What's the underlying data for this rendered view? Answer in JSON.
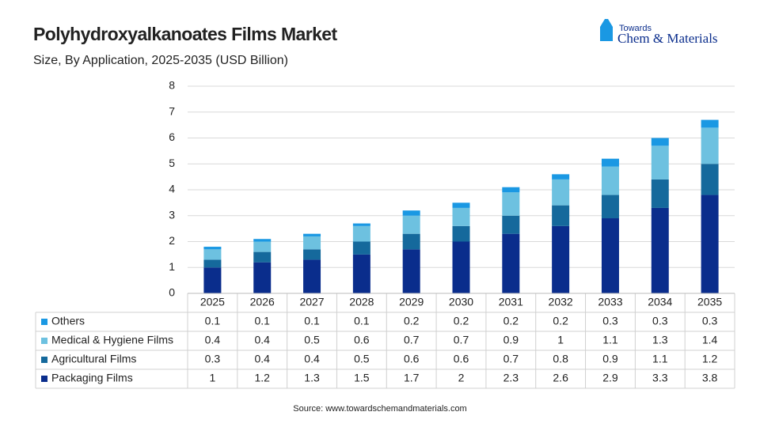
{
  "chart_data": {
    "type": "stacked-bar",
    "title": "Polyhydroxyalkanoates Films Market",
    "subtitle": "Size, By Application, 2025-2035 (USD Billion)",
    "source": "Source: www.towardschemandmaterials.com",
    "logo": {
      "line1": "Towards",
      "line2": "Chem & Materials"
    },
    "categories": [
      "2025",
      "2026",
      "2027",
      "2028",
      "2029",
      "2030",
      "2031",
      "2032",
      "2033",
      "2034",
      "2035"
    ],
    "series": [
      {
        "name": "Packaging Films",
        "color": "#0a2d8c",
        "values": [
          1,
          1.2,
          1.3,
          1.5,
          1.7,
          2,
          2.3,
          2.6,
          2.9,
          3.3,
          3.8
        ]
      },
      {
        "name": "Agricultural Films",
        "color": "#15699c",
        "values": [
          0.3,
          0.4,
          0.4,
          0.5,
          0.6,
          0.6,
          0.7,
          0.8,
          0.9,
          1.1,
          1.2
        ]
      },
      {
        "name": "Medical & Hygiene Films",
        "color": "#6dc1e0",
        "values": [
          0.4,
          0.4,
          0.5,
          0.6,
          0.7,
          0.7,
          0.9,
          1,
          1.1,
          1.3,
          1.4
        ]
      },
      {
        "name": "Others",
        "color": "#1a98e3",
        "values": [
          0.1,
          0.1,
          0.1,
          0.1,
          0.2,
          0.2,
          0.2,
          0.2,
          0.3,
          0.3,
          0.3
        ]
      }
    ],
    "ylim": [
      0,
      8
    ],
    "yticks": [
      0,
      1,
      2,
      3,
      4,
      5,
      6,
      7,
      8
    ],
    "grid": true
  }
}
